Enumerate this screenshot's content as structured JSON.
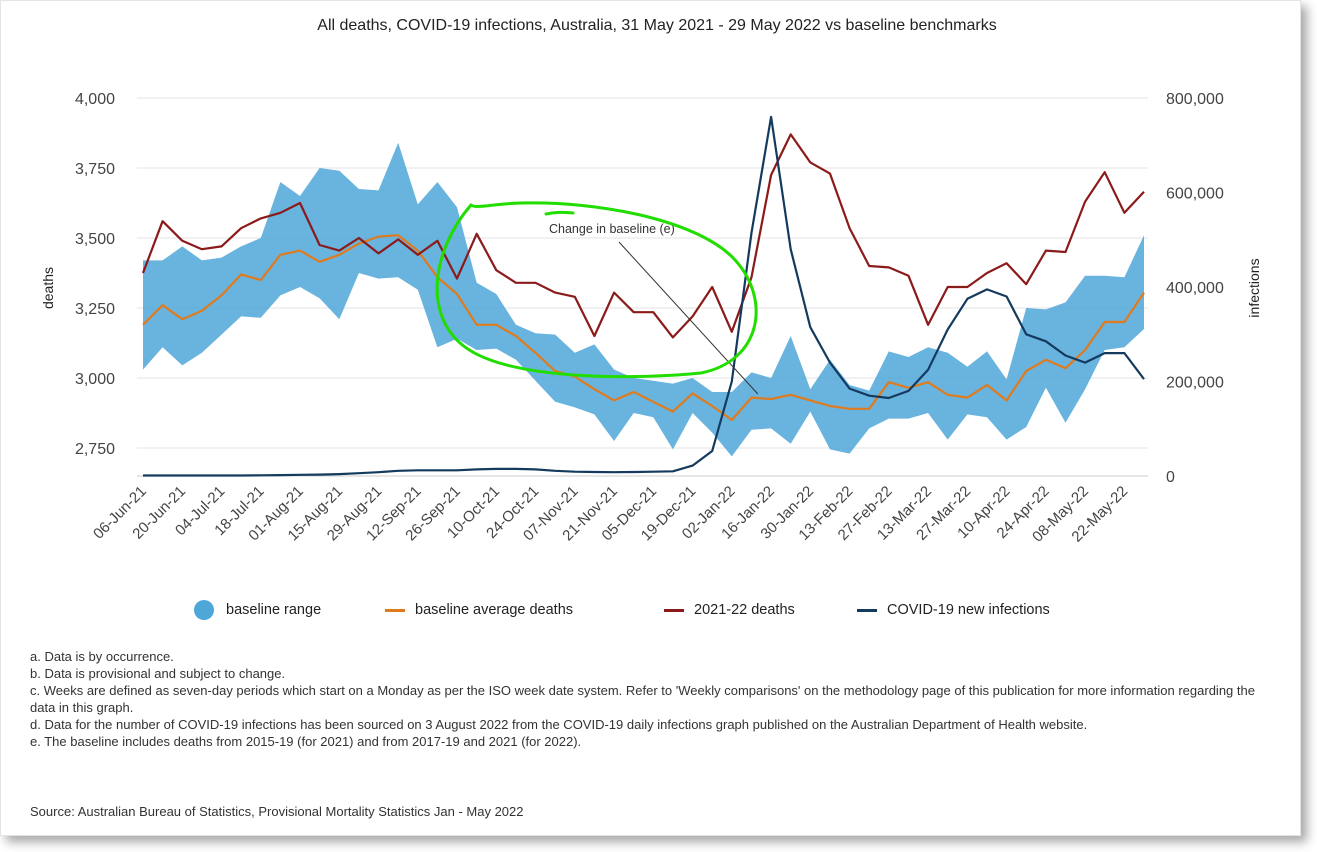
{
  "title": "All deaths, COVID-19 infections, Australia, 31 May 2021 - 29 May 2022 vs baseline benchmarks",
  "chart_data": {
    "type": "line",
    "title": "All deaths, COVID-19 infections, Australia, 31 May 2021 - 29 May 2022 vs baseline benchmarks",
    "xlabel": "",
    "ylabel": "deaths",
    "y2label": "infections",
    "ylim": [
      2650,
      4000
    ],
    "y2lim": [
      0,
      800000
    ],
    "yticks": [
      "2,750",
      "3,000",
      "3,250",
      "3,500",
      "3,750",
      "4,000"
    ],
    "yticks_values": [
      2750,
      3000,
      3250,
      3500,
      3750,
      4000
    ],
    "y2ticks": [
      "0",
      "200,000",
      "400,000",
      "600,000",
      "800,000"
    ],
    "y2ticks_values": [
      0,
      200000,
      400000,
      600000,
      800000
    ],
    "grid": "horizontal",
    "legend_position": "bottom",
    "x": [
      "06-Jun-21",
      "13-Jun-21",
      "20-Jun-21",
      "27-Jun-21",
      "04-Jul-21",
      "11-Jul-21",
      "18-Jul-21",
      "25-Jul-21",
      "01-Aug-21",
      "08-Aug-21",
      "15-Aug-21",
      "22-Aug-21",
      "29-Aug-21",
      "05-Sep-21",
      "12-Sep-21",
      "19-Sep-21",
      "26-Sep-21",
      "03-Oct-21",
      "10-Oct-21",
      "17-Oct-21",
      "24-Oct-21",
      "31-Oct-21",
      "07-Nov-21",
      "14-Nov-21",
      "21-Nov-21",
      "28-Nov-21",
      "05-Dec-21",
      "12-Dec-21",
      "19-Dec-21",
      "26-Dec-21",
      "02-Jan-22",
      "09-Jan-22",
      "16-Jan-22",
      "23-Jan-22",
      "30-Jan-22",
      "06-Feb-22",
      "13-Feb-22",
      "20-Feb-22",
      "27-Feb-22",
      "06-Mar-22",
      "13-Mar-22",
      "20-Mar-22",
      "27-Mar-22",
      "03-Apr-22",
      "10-Apr-22",
      "17-Apr-22",
      "24-Apr-22",
      "01-May-22",
      "08-May-22",
      "15-May-22",
      "22-May-22",
      "29-May-22"
    ],
    "x_tick_labels": [
      "06-Jun-21",
      "20-Jun-21",
      "04-Jul-21",
      "18-Jul-21",
      "01-Aug-21",
      "15-Aug-21",
      "29-Aug-21",
      "12-Sep-21",
      "26-Sep-21",
      "10-Oct-21",
      "24-Oct-21",
      "07-Nov-21",
      "21-Nov-21",
      "05-Dec-21",
      "19-Dec-21",
      "02-Jan-22",
      "16-Jan-22",
      "30-Jan-22",
      "13-Feb-22",
      "27-Feb-22",
      "13-Mar-22",
      "27-Mar-22",
      "10-Apr-22",
      "24-Apr-22",
      "08-May-22",
      "22-May-22"
    ],
    "series": [
      {
        "name": "baseline range",
        "kind": "band",
        "color": "#4fa6d9",
        "upper": [
          3420,
          3420,
          3470,
          3420,
          3430,
          3470,
          3500,
          3700,
          3650,
          3750,
          3740,
          3675,
          3670,
          3840,
          3620,
          3700,
          3610,
          3340,
          3300,
          3190,
          3160,
          3155,
          3090,
          3120,
          3030,
          3000,
          2990,
          2980,
          3000,
          2950,
          2950,
          3020,
          3000,
          3150,
          2960,
          3065,
          2975,
          2955,
          3095,
          3075,
          3110,
          3090,
          3040,
          3095,
          2995,
          3250,
          3245,
          3270,
          3365,
          3365,
          3360,
          3510
        ],
        "lower": [
          3030,
          3110,
          3045,
          3090,
          3155,
          3220,
          3215,
          3295,
          3325,
          3285,
          3210,
          3375,
          3355,
          3360,
          3315,
          3110,
          3140,
          3100,
          3105,
          3065,
          2990,
          2915,
          2895,
          2870,
          2775,
          2875,
          2860,
          2745,
          2875,
          2805,
          2720,
          2815,
          2820,
          2765,
          2880,
          2745,
          2730,
          2820,
          2855,
          2855,
          2875,
          2780,
          2870,
          2860,
          2780,
          2825,
          2965,
          2840,
          2960,
          3100,
          3110,
          3175
        ]
      },
      {
        "name": "baseline average deaths",
        "kind": "line",
        "color": "#e07b1d",
        "values": [
          3190,
          3260,
          3210,
          3240,
          3295,
          3370,
          3350,
          3440,
          3455,
          3415,
          3440,
          3480,
          3505,
          3510,
          3455,
          3360,
          3300,
          3190,
          3190,
          3150,
          3090,
          3025,
          3005,
          2960,
          2920,
          2950,
          2915,
          2880,
          2945,
          2900,
          2850,
          2930,
          2925,
          2940,
          2920,
          2900,
          2890,
          2890,
          2985,
          2965,
          2985,
          2940,
          2930,
          2975,
          2920,
          3025,
          3065,
          3035,
          3100,
          3200,
          3200,
          3305
        ]
      },
      {
        "name": "2021-22 deaths",
        "kind": "line",
        "color": "#8b1a1a",
        "values": [
          3375,
          3560,
          3490,
          3460,
          3470,
          3535,
          3570,
          3590,
          3625,
          3475,
          3455,
          3500,
          3445,
          3495,
          3440,
          3490,
          3355,
          3515,
          3385,
          3340,
          3340,
          3305,
          3290,
          3150,
          3305,
          3235,
          3235,
          3145,
          3220,
          3325,
          3165,
          3360,
          3725,
          3870,
          3770,
          3730,
          3535,
          3400,
          3395,
          3365,
          3190,
          3325,
          3325,
          3375,
          3410,
          3335,
          3455,
          3450,
          3630,
          3735,
          3590,
          3665
        ]
      },
      {
        "name": "COVID-19 new infections",
        "kind": "line",
        "axis": "right",
        "color": "#143a5e",
        "values": [
          1000,
          1000,
          1000,
          1000,
          1000,
          1000,
          1500,
          2000,
          2500,
          3000,
          4000,
          6000,
          8000,
          11000,
          12000,
          12000,
          12000,
          14000,
          15000,
          15000,
          14000,
          11000,
          9000,
          8500,
          8000,
          8500,
          9000,
          10000,
          22000,
          53000,
          200000,
          515000,
          760000,
          480000,
          315000,
          240000,
          185000,
          170000,
          165000,
          180000,
          225000,
          310000,
          375000,
          395000,
          380000,
          300000,
          285000,
          255000,
          240000,
          260000,
          260000,
          205000
        ]
      }
    ],
    "annotations": [
      {
        "text": "Change in baseline (e)",
        "points_to": "02-Jan-22 / 2,950"
      }
    ]
  },
  "legend": [
    {
      "label": "baseline range",
      "color": "#4fa6d9",
      "shape": "dot"
    },
    {
      "label": "baseline average deaths",
      "color": "#e07b1d",
      "shape": "line"
    },
    {
      "label": "2021-22 deaths",
      "color": "#8b1a1a",
      "shape": "line"
    },
    {
      "label": "COVID-19 new infections",
      "color": "#143a5e",
      "shape": "line"
    }
  ],
  "highlight_color": "#22dd00",
  "notes": [
    "a. Data is by occurrence.",
    "b. Data is provisional and subject to change.",
    "c. Weeks are defined as seven-day periods which start on a Monday as per the ISO week date system. Refer to 'Weekly comparisons' on the methodology page of this publication for more information regarding the data in this graph.",
    "d. Data for the number of COVID-19 infections has been sourced on 3 August 2022 from the COVID-19 daily infections graph published on the Australian Department of Health website.",
    "e. The baseline includes deaths from 2015-19 (for 2021) and from 2017-19 and 2021 (for 2022)."
  ],
  "source": "Source: Australian Bureau of Statistics, Provisional Mortality Statistics Jan - May 2022"
}
